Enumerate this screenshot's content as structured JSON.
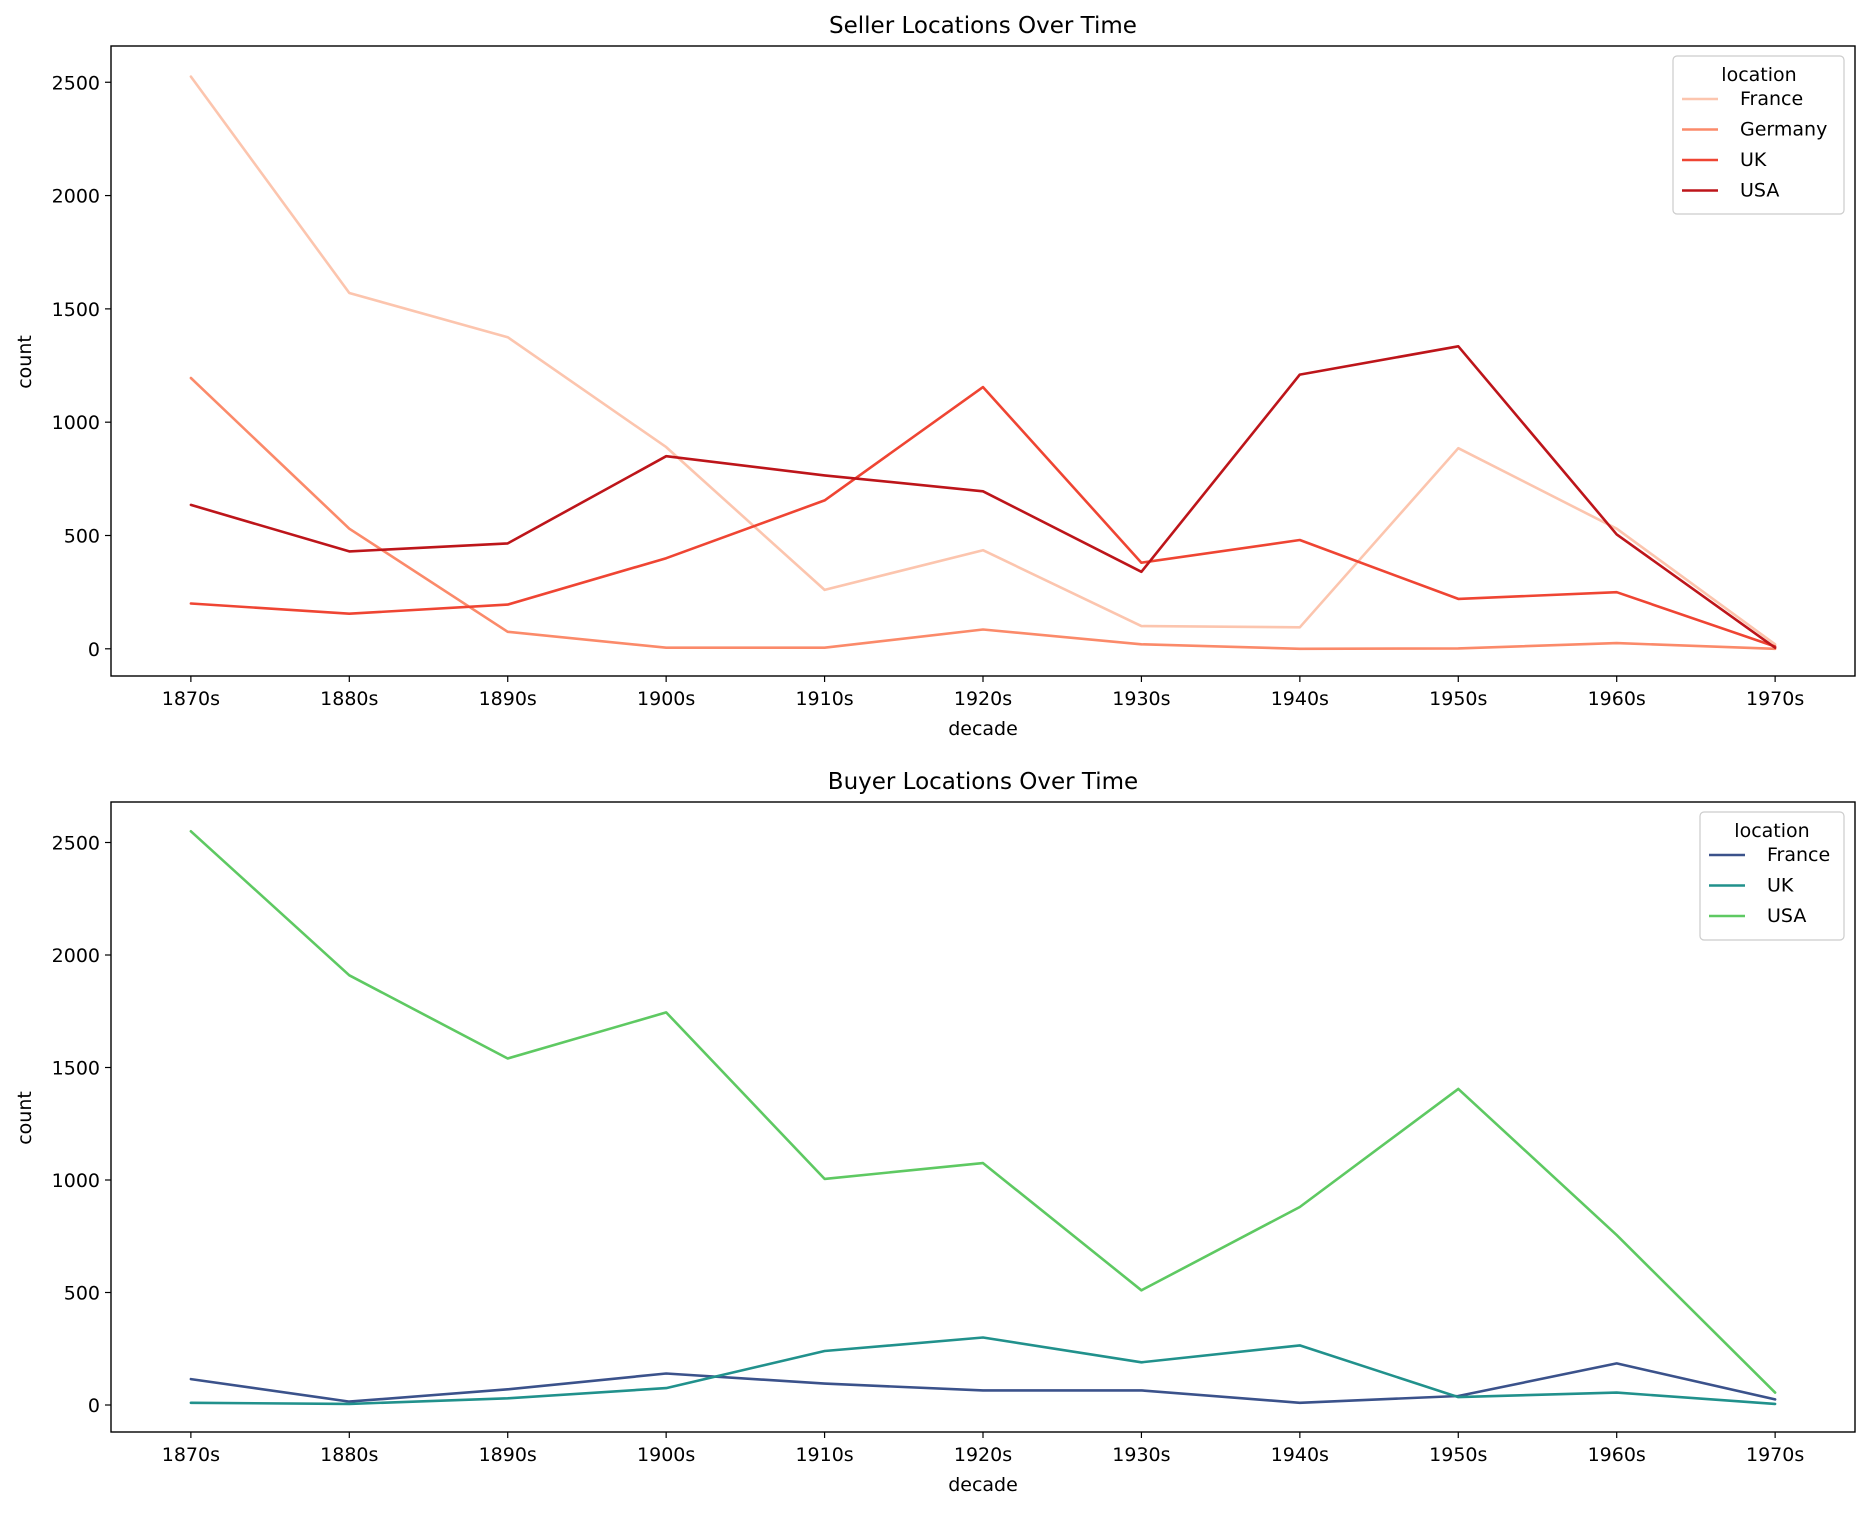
{
  "chart_data": [
    {
      "type": "line",
      "title": "Seller Locations Over Time",
      "xlabel": "decade",
      "ylabel": "count",
      "categories": [
        "1870s",
        "1880s",
        "1890s",
        "1900s",
        "1910s",
        "1920s",
        "1930s",
        "1940s",
        "1950s",
        "1960s",
        "1970s"
      ],
      "ylim": [
        -120,
        2660
      ],
      "yticks": [
        0,
        500,
        1000,
        1500,
        2000,
        2500
      ],
      "grid": false,
      "legend": {
        "title": "location",
        "placement": "top-right"
      },
      "series": [
        {
          "name": "France",
          "color": "#fcc5ae",
          "values": [
            2525,
            1570,
            1375,
            890,
            260,
            435,
            100,
            95,
            885,
            530,
            20
          ]
        },
        {
          "name": "Germany",
          "color": "#fb8a6a",
          "values": [
            1195,
            530,
            75,
            5,
            5,
            85,
            20,
            0,
            2,
            25,
            0
          ]
        },
        {
          "name": "UK",
          "color": "#ef4533",
          "values": [
            200,
            155,
            195,
            400,
            655,
            1155,
            380,
            480,
            220,
            250,
            10
          ]
        },
        {
          "name": "USA",
          "color": "#bd151a",
          "values": [
            635,
            430,
            465,
            850,
            765,
            695,
            340,
            1210,
            1335,
            505,
            5
          ]
        }
      ]
    },
    {
      "type": "line",
      "title": "Buyer Locations Over Time",
      "xlabel": "decade",
      "ylabel": "count",
      "categories": [
        "1870s",
        "1880s",
        "1890s",
        "1900s",
        "1910s",
        "1920s",
        "1930s",
        "1940s",
        "1950s",
        "1960s",
        "1970s"
      ],
      "ylim": [
        -120,
        2680
      ],
      "yticks": [
        0,
        500,
        1000,
        1500,
        2000,
        2500
      ],
      "grid": false,
      "legend": {
        "title": "location",
        "placement": "top-right"
      },
      "series": [
        {
          "name": "France",
          "color": "#3b528b",
          "values": [
            115,
            15,
            70,
            140,
            95,
            65,
            65,
            10,
            40,
            185,
            25
          ]
        },
        {
          "name": "UK",
          "color": "#21918c",
          "values": [
            10,
            5,
            30,
            75,
            240,
            300,
            190,
            265,
            35,
            55,
            5
          ]
        },
        {
          "name": "USA",
          "color": "#5ec962",
          "values": [
            2550,
            1910,
            1540,
            1745,
            1005,
            1075,
            510,
            880,
            1405,
            755,
            55
          ]
        }
      ]
    }
  ]
}
